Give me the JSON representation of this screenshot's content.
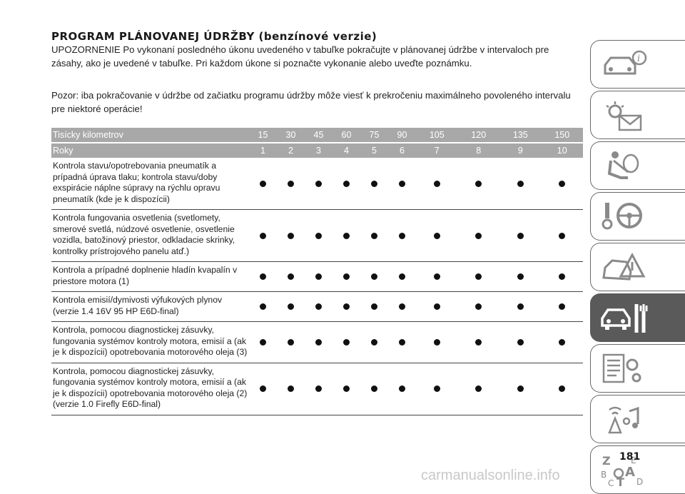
{
  "page": {
    "title": "PROGRAM PLÁNOVANEJ ÚDRŽBY (benzínové verzie)",
    "paragraph1": "UPOZORNENIE Po vykonaní posledného úkonu uvedeného v tabuľke pokračujte v plánovanej údržbe v intervaloch pre zásahy, ako je uvedené v tabuľke. Pri každom úkone si poznačte vykonanie alebo uveďte poznámku.",
    "paragraph2": "Pozor: iba pokračovanie v údržbe od začiatku programu údržby môže viesť k prekročeniu maximálneho povoleného intervalu pre niektoré operácie!",
    "page_number": "181",
    "watermark": "carmanualsonline.info"
  },
  "table": {
    "header_km_label": "Tisícky kilometrov",
    "header_years_label": "Roky",
    "km": [
      "15",
      "30",
      "45",
      "60",
      "75",
      "90",
      "105",
      "120",
      "135",
      "150"
    ],
    "years": [
      "1",
      "2",
      "3",
      "4",
      "5",
      "6",
      "7",
      "8",
      "9",
      "10"
    ],
    "rows": [
      {
        "text": "Kontrola stavu/opotrebovania pneumatík a prípadná úprava tlaku; kontrola stavu/doby exspirácie náplne súpravy na rýchlu opravu pneumatík (kde je k dispozícii)",
        "dots": [
          true,
          true,
          true,
          true,
          true,
          true,
          true,
          true,
          true,
          true
        ]
      },
      {
        "text": "Kontrola fungovania osvetlenia (svetlomety, smerové svetlá, núdzové osvetlenie, osvetlenie vozidla, batožinový priestor, odkladacie skrinky, kontrolky prístrojového panelu atď.)",
        "dots": [
          true,
          true,
          true,
          true,
          true,
          true,
          true,
          true,
          true,
          true
        ]
      },
      {
        "text": "Kontrola a prípadné doplnenie hladín kvapalín v priestore motora (1)",
        "dots": [
          true,
          true,
          true,
          true,
          true,
          true,
          true,
          true,
          true,
          true
        ]
      },
      {
        "text": "Kontrola emisií/dymivosti výfukových plynov (verzie 1.4 16V 95 HP E6D-final)",
        "dots": [
          true,
          true,
          true,
          true,
          true,
          true,
          true,
          true,
          true,
          true
        ]
      },
      {
        "text": "Kontrola, pomocou diagnostickej zásuvky, fungovania systémov kontroly motora, emisií a (ak je k dispozícii) opotrebovania motorového oleja (3)",
        "dots": [
          true,
          true,
          true,
          true,
          true,
          true,
          true,
          true,
          true,
          true
        ]
      },
      {
        "text": "Kontrola, pomocou diagnostickej zásuvky, fungovania systémov kontroly motora, emisií a (ak je k dispozícii) opotrebovania motorového oleja (2) (verzie 1.0 Firefly E6D-final)",
        "dots": [
          true,
          true,
          true,
          true,
          true,
          true,
          true,
          true,
          true,
          true
        ]
      }
    ]
  },
  "side_tabs": [
    {
      "icon": "car-info-icon",
      "active": false
    },
    {
      "icon": "warning-lights-message-icon",
      "active": false
    },
    {
      "icon": "seat-airbag-icon",
      "active": false
    },
    {
      "icon": "key-steering-wheel-icon",
      "active": false
    },
    {
      "icon": "car-emergency-icon",
      "active": false
    },
    {
      "icon": "car-wrench-maintenance-icon",
      "active": true
    },
    {
      "icon": "specs-gears-icon",
      "active": false
    },
    {
      "icon": "multimedia-icon",
      "active": false
    },
    {
      "icon": "alphabetical-index-icon",
      "active": false
    }
  ],
  "colors": {
    "table_header_bg": "#a8a8a8",
    "active_tab_bg": "#5a5a5a"
  }
}
